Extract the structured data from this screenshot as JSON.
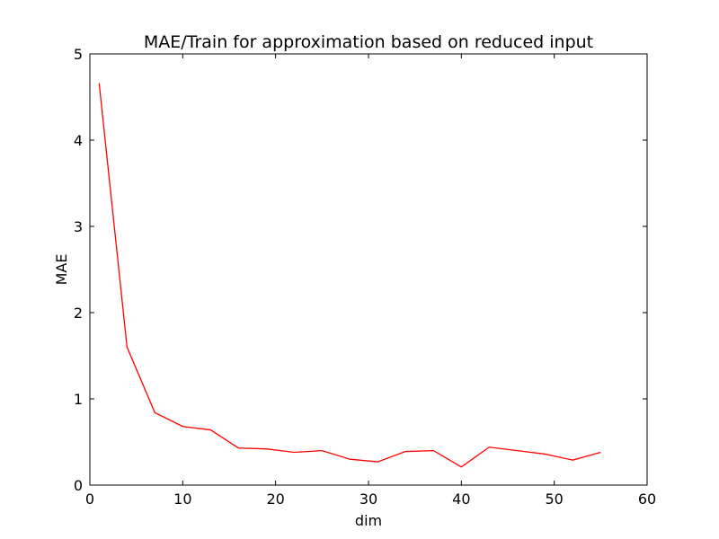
{
  "chart_data": {
    "type": "line",
    "title": "MAE/Train for approximation based on reduced input",
    "xlabel": "dim",
    "ylabel": "MAE",
    "xlim": [
      0,
      60
    ],
    "ylim": [
      0,
      5
    ],
    "xticks": [
      0,
      10,
      20,
      30,
      40,
      50,
      60
    ],
    "yticks": [
      0,
      1,
      2,
      3,
      4,
      5
    ],
    "grid": false,
    "series": [
      {
        "color": "#ff0000",
        "x": [
          1,
          4,
          7,
          10,
          13,
          16,
          19,
          22,
          25,
          28,
          31,
          34,
          37,
          40,
          43,
          46,
          49,
          52,
          55
        ],
        "y": [
          4.66,
          1.6,
          0.84,
          0.68,
          0.64,
          0.43,
          0.42,
          0.38,
          0.4,
          0.3,
          0.27,
          0.39,
          0.4,
          0.21,
          0.44,
          0.4,
          0.36,
          0.29,
          0.38
        ]
      }
    ]
  }
}
